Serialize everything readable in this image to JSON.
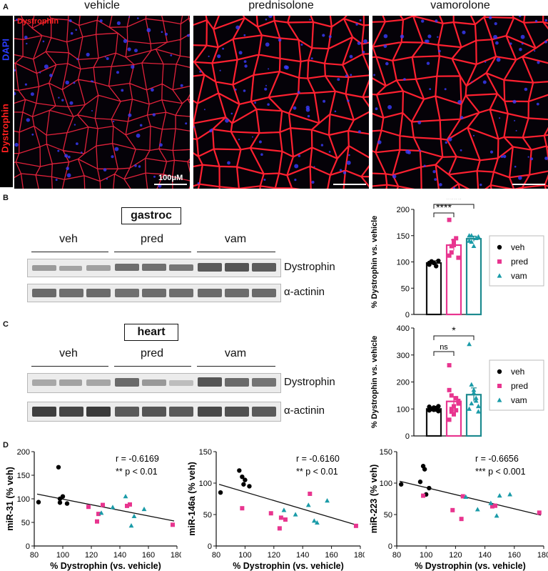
{
  "panelA": {
    "label": "A",
    "columns": [
      "vehicle",
      "prednisolone",
      "vamorolone"
    ],
    "stain_dystrophin": "Dystrophin",
    "stain_dapi": "DAPI",
    "scalebar": "100μM"
  },
  "panelB": {
    "label": "B",
    "tissue": "gastroc",
    "lanes": [
      "veh",
      "pred",
      "vam"
    ],
    "rows": [
      "Dystrophin",
      "α-actinin"
    ]
  },
  "panelC": {
    "label": "C",
    "tissue": "heart",
    "lanes": [
      "veh",
      "pred",
      "vam"
    ],
    "rows": [
      "Dystrophin",
      "α-actinin"
    ]
  },
  "panelD": {
    "label": "D"
  },
  "colors": {
    "veh": "#000000",
    "pred": "#e8358f",
    "vam": "#1a9ba8",
    "vam_bar": "#1d8a8f"
  },
  "legend": [
    "veh",
    "pred",
    "vam"
  ],
  "chart_data": [
    {
      "type": "bar",
      "ylabel": "% Dystrophin vs. vehicle",
      "ylim": [
        0,
        200
      ],
      "yticks": [
        0,
        50,
        100,
        150,
        200
      ],
      "categories": [
        "veh",
        "pred",
        "vam"
      ],
      "values": [
        98,
        132,
        144
      ],
      "errors": [
        4,
        10,
        5
      ],
      "points": [
        [
          95,
          100,
          98,
          92,
          102,
          98,
          101
        ],
        [
          112,
          118,
          132,
          145,
          108,
          180,
          130,
          140
        ],
        [
          140,
          150,
          130,
          145,
          148,
          150,
          138
        ]
      ],
      "significance": [
        {
          "from": "veh",
          "to": "pred",
          "label": "****"
        },
        {
          "from": "veh",
          "to": "vam",
          "label": "****"
        }
      ]
    },
    {
      "type": "bar",
      "ylabel": "% Dystrophin vs. vehicle",
      "ylim": [
        0,
        400
      ],
      "yticks": [
        0,
        100,
        200,
        300,
        400
      ],
      "categories": [
        "veh",
        "pred",
        "vam"
      ],
      "values": [
        100,
        128,
        153
      ],
      "errors": [
        4,
        18,
        25
      ],
      "points": [
        [
          95,
          100,
          105,
          98,
          92,
          108,
          100,
          97,
          103,
          110
        ],
        [
          262,
          100,
          80,
          140,
          120,
          60,
          150,
          110,
          95,
          130,
          170,
          90
        ],
        [
          340,
          190,
          160,
          130,
          90,
          100,
          120,
          170,
          140,
          110
        ]
      ],
      "significance": [
        {
          "from": "veh",
          "to": "pred",
          "label": "ns"
        },
        {
          "from": "veh",
          "to": "vam",
          "label": "*"
        }
      ]
    },
    {
      "type": "scatter",
      "xlabel": "% Dystrophin (vs. vehicle)",
      "ylabel": "miR-31 (% veh)",
      "xlim": [
        80,
        180
      ],
      "ylim": [
        0,
        200
      ],
      "xticks": [
        80,
        100,
        120,
        140,
        160,
        180
      ],
      "yticks": [
        0,
        50,
        100,
        150,
        200
      ],
      "r_text": "r = -0.6169",
      "p_text": "** p < 0.01",
      "fit": [
        [
          82,
          110
        ],
        [
          178,
          53
        ]
      ],
      "series": [
        {
          "group": "veh",
          "x": [
            83,
            97,
            98,
            100,
            103,
            98
          ],
          "y": [
            93,
            167,
            100,
            105,
            90,
            92
          ]
        },
        {
          "group": "pred",
          "x": [
            118,
            124,
            125,
            128,
            145,
            147,
            177
          ],
          "y": [
            83,
            52,
            68,
            87,
            85,
            88,
            45
          ]
        },
        {
          "group": "vam",
          "x": [
            127,
            135,
            144,
            148,
            150,
            157
          ],
          "y": [
            70,
            82,
            105,
            43,
            63,
            78
          ]
        }
      ]
    },
    {
      "type": "scatter",
      "xlabel": "% Dystrophin (vs. vehicle)",
      "ylabel": "miR-146a (% veh)",
      "xlim": [
        80,
        180
      ],
      "ylim": [
        0,
        150
      ],
      "xticks": [
        80,
        100,
        120,
        140,
        160,
        180
      ],
      "yticks": [
        0,
        50,
        100,
        150
      ],
      "r_text": "r = -0.6160",
      "p_text": "** p < 0.01",
      "fit": [
        [
          82,
          98
        ],
        [
          178,
          33
        ]
      ],
      "series": [
        {
          "group": "veh",
          "x": [
            83,
            96,
            98,
            100,
            103,
            99
          ],
          "y": [
            85,
            120,
            110,
            105,
            95,
            98
          ]
        },
        {
          "group": "pred",
          "x": [
            98,
            118,
            124,
            125,
            128,
            145,
            177
          ],
          "y": [
            60,
            52,
            28,
            45,
            42,
            83,
            32
          ]
        },
        {
          "group": "vam",
          "x": [
            127,
            135,
            144,
            148,
            150,
            157
          ],
          "y": [
            57,
            50,
            65,
            40,
            37,
            72
          ]
        }
      ]
    },
    {
      "type": "scatter",
      "xlabel": "% Dystrophin (vs. vehicle)",
      "ylabel": "miR-223 (% veh)",
      "xlim": [
        80,
        180
      ],
      "ylim": [
        0,
        150
      ],
      "xticks": [
        80,
        100,
        120,
        140,
        160,
        180
      ],
      "yticks": [
        0,
        50,
        100,
        150
      ],
      "r_text": "r = -0.6656",
      "p_text": "*** p < 0.001",
      "fit": [
        [
          82,
          103
        ],
        [
          178,
          49
        ]
      ],
      "series": [
        {
          "group": "veh",
          "x": [
            83,
            96,
            98,
            99,
            102,
            100
          ],
          "y": [
            98,
            102,
            127,
            122,
            92,
            82
          ]
        },
        {
          "group": "pred",
          "x": [
            98,
            118,
            124,
            125,
            145,
            147,
            177
          ],
          "y": [
            80,
            57,
            43,
            79,
            63,
            64,
            53
          ]
        },
        {
          "group": "vam",
          "x": [
            127,
            135,
            144,
            148,
            150,
            157
          ],
          "y": [
            78,
            58,
            68,
            48,
            80,
            82
          ]
        }
      ]
    }
  ]
}
